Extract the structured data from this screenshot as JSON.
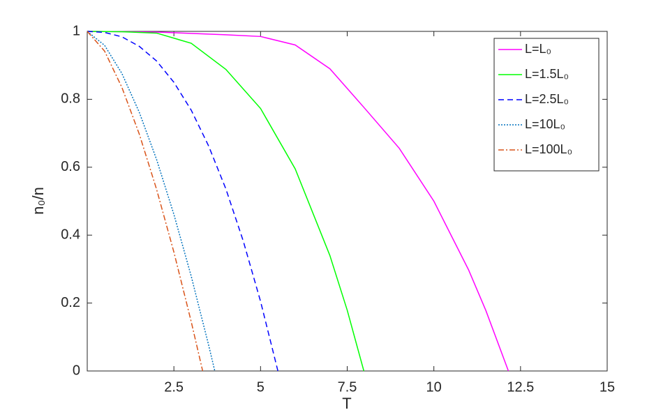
{
  "chart_data": {
    "type": "line",
    "x_label": "T",
    "y_label": "n₀/n",
    "xlim": [
      0,
      15
    ],
    "ylim": [
      0,
      1
    ],
    "xticks": [
      2.5,
      5,
      7.5,
      10,
      12.5,
      15
    ],
    "yticks": [
      0,
      0.2,
      0.4,
      0.6,
      0.8,
      1
    ],
    "grid": false,
    "legend": "top-right",
    "series": [
      {
        "name": "L=L₀",
        "color": "#ff00ff",
        "style": "solid",
        "x": [
          0,
          2,
          4,
          5,
          6,
          7,
          8,
          9,
          10,
          11,
          11.5,
          12.15
        ],
        "values": [
          1,
          0.998,
          0.99,
          0.985,
          0.96,
          0.89,
          0.774,
          0.656,
          0.5,
          0.298,
          0.178,
          0
        ]
      },
      {
        "name": "L=1.5L₀",
        "color": "#00ff00",
        "style": "solid",
        "x": [
          0,
          1,
          2,
          3,
          4,
          5,
          6,
          7,
          7.5,
          7.98
        ],
        "values": [
          1,
          0.999,
          0.995,
          0.965,
          0.888,
          0.773,
          0.595,
          0.34,
          0.179,
          0
        ]
      },
      {
        "name": "L=2.5L₀",
        "color": "#0000ff",
        "style": "dashed",
        "x": [
          0,
          0.5,
          1,
          1.5,
          2,
          2.5,
          3,
          3.5,
          4,
          4.5,
          5,
          5.5
        ],
        "values": [
          1,
          0.997,
          0.984,
          0.956,
          0.913,
          0.85,
          0.768,
          0.663,
          0.536,
          0.383,
          0.205,
          0
        ]
      },
      {
        "name": "L=10L₀",
        "color": "#0072bd",
        "style": "dotted",
        "x": [
          0,
          0.5,
          1,
          1.5,
          2,
          2.5,
          3,
          3.5,
          3.68
        ],
        "values": [
          1,
          0.959,
          0.876,
          0.762,
          0.623,
          0.461,
          0.279,
          0.077,
          0
        ]
      },
      {
        "name": "L=100L₀",
        "color": "#d95319",
        "style": "dashdot",
        "x": [
          0,
          0.5,
          1,
          1.5,
          2,
          2.5,
          3,
          3.33
        ],
        "values": [
          1,
          0.942,
          0.835,
          0.698,
          0.535,
          0.35,
          0.145,
          0
        ]
      }
    ]
  }
}
